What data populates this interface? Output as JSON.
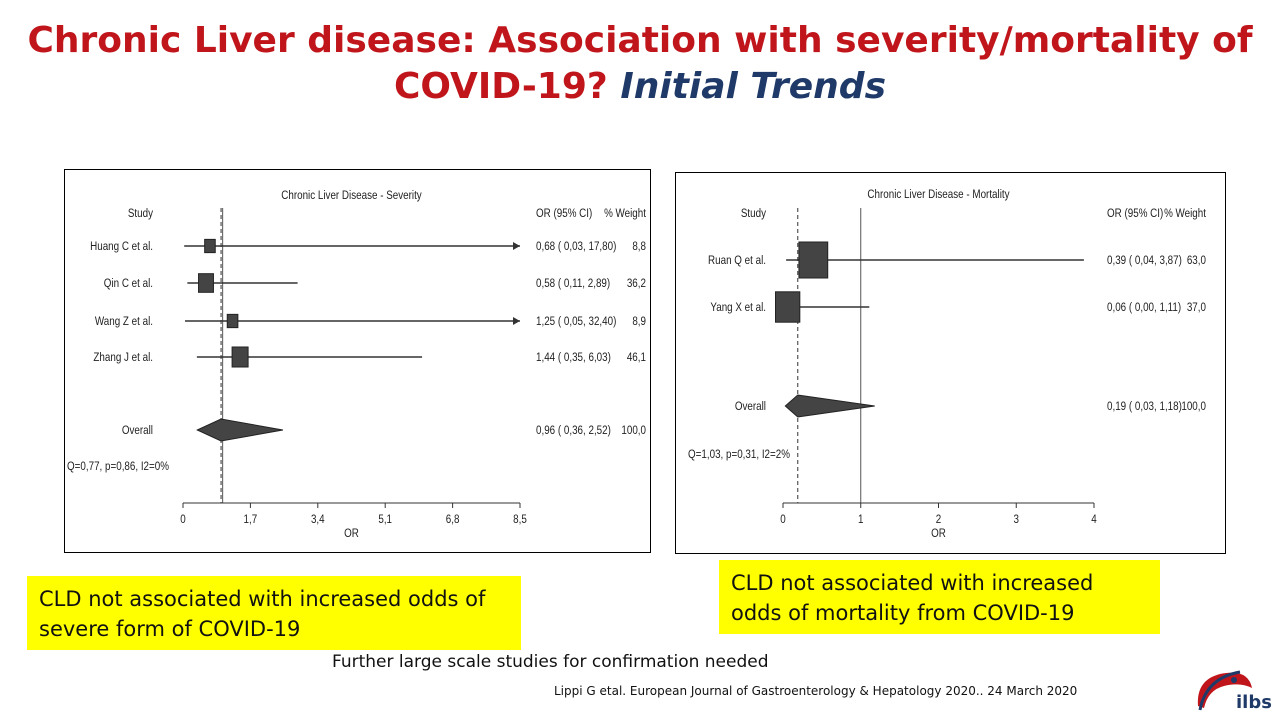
{
  "slide": {
    "title_main": "Chronic Liver disease: Association with severity/mortality of COVID-19?",
    "title_sub": "Initial Trends",
    "note_left": "CLD not associated with increased odds of severe form of COVID-19",
    "note_right": "CLD not associated with increased odds of mortality from COVID-19",
    "footer": "Further large scale studies for confirmation needed",
    "citation": "Lippi G etal. European Journal of Gastroenterology & Hepatology 2020.. 24 March 2020",
    "logo_text": "ilbs",
    "colors": {
      "title": "#c0161b",
      "subtitle": "#1f3a68",
      "note_bg": "#ffff00"
    }
  },
  "chart_data": [
    {
      "type": "forest",
      "title": "Chronic Liver Disease - Severity",
      "xlabel": "OR",
      "col_study": "Study",
      "col_or": "OR (95% CI)",
      "col_weight": "% Weight",
      "x_ticks": [
        0,
        1.7,
        3.4,
        5.1,
        6.8,
        8.5
      ],
      "x_tick_labels": [
        "0",
        "1,7",
        "3,4",
        "5,1",
        "6,8",
        "8,5"
      ],
      "xlim": [
        0,
        8.5
      ],
      "null_line": 1,
      "reference_line": 0.96,
      "heterogeneity": "Q=0,77, p=0,86, I2=0%",
      "studies": [
        {
          "name": "Huang C et al.",
          "or": 0.68,
          "low": 0.03,
          "high": 17.8,
          "label": "0,68  ( 0,03, 17,80)",
          "weight": 8.8,
          "weight_label": "8,8",
          "arrow": true
        },
        {
          "name": "Qin C et al.",
          "or": 0.58,
          "low": 0.11,
          "high": 2.89,
          "label": "0,58  ( 0,11,  2,89)",
          "weight": 36.2,
          "weight_label": "36,2",
          "arrow": false
        },
        {
          "name": "Wang Z et al.",
          "or": 1.25,
          "low": 0.05,
          "high": 32.4,
          "label": "1,25  ( 0,05, 32,40)",
          "weight": 8.9,
          "weight_label": "8,9",
          "arrow": true
        },
        {
          "name": "Zhang J et al.",
          "or": 1.44,
          "low": 0.35,
          "high": 6.03,
          "label": "1,44  ( 0,35,  6,03)",
          "weight": 46.1,
          "weight_label": "46,1",
          "arrow": false
        }
      ],
      "overall": {
        "name": "Overall",
        "or": 0.96,
        "low": 0.36,
        "high": 2.52,
        "label": "0,96  ( 0,36,  2,52)",
        "weight_label": "100,0"
      }
    },
    {
      "type": "forest",
      "title": "Chronic Liver Disease - Mortality",
      "xlabel": "OR",
      "col_study": "Study",
      "col_or": "OR (95% CI)",
      "col_weight": "% Weight",
      "x_ticks": [
        0,
        1,
        2,
        3,
        4
      ],
      "x_tick_labels": [
        "0",
        "1",
        "2",
        "3",
        "4"
      ],
      "xlim": [
        0,
        4
      ],
      "null_line": 1,
      "reference_line": 0.19,
      "heterogeneity": "Q=1,03, p=0,31, I2=2%",
      "studies": [
        {
          "name": "Ruan Q et al.",
          "or": 0.39,
          "low": 0.04,
          "high": 3.87,
          "label": "0,39  ( 0,04,  3,87)",
          "weight": 63.0,
          "weight_label": "63,0",
          "arrow": false
        },
        {
          "name": "Yang X et al.",
          "or": 0.06,
          "low": 0.0,
          "high": 1.11,
          "label": "0,06  ( 0,00,  1,11)",
          "weight": 37.0,
          "weight_label": "37,0",
          "arrow": false
        }
      ],
      "overall": {
        "name": "Overall",
        "or": 0.19,
        "low": 0.03,
        "high": 1.18,
        "label": "0,19  ( 0,03,  1,18)",
        "weight_label": "100,0"
      }
    }
  ]
}
